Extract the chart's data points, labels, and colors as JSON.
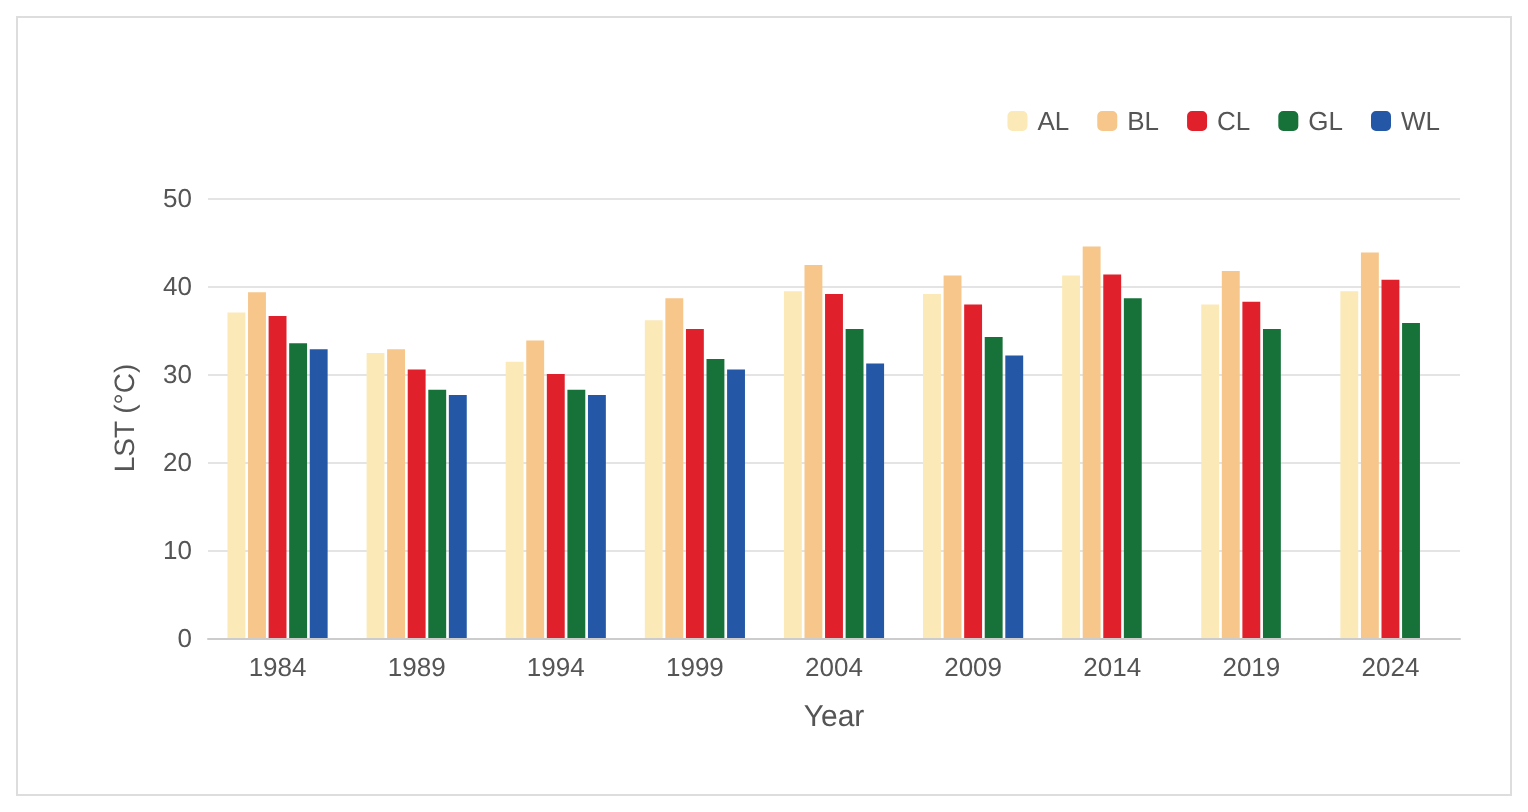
{
  "chart_data": {
    "type": "bar",
    "xlabel": "Year",
    "ylabel": "LST (°C)",
    "categories": [
      "1984",
      "1989",
      "1994",
      "1999",
      "2004",
      "2009",
      "2014",
      "2019",
      "2024"
    ],
    "series": [
      {
        "name": "AL",
        "color": "#fbe9b8",
        "values": [
          37.0,
          32.4,
          31.4,
          36.1,
          39.4,
          39.1,
          41.2,
          37.9,
          39.4
        ]
      },
      {
        "name": "BL",
        "color": "#f6c68a",
        "values": [
          39.3,
          32.8,
          33.8,
          38.6,
          42.4,
          41.2,
          44.5,
          41.7,
          43.8
        ]
      },
      {
        "name": "CL",
        "color": "#e0202a",
        "values": [
          36.6,
          30.5,
          30.0,
          35.1,
          39.1,
          37.9,
          41.3,
          38.2,
          40.7
        ]
      },
      {
        "name": "GL",
        "color": "#17723a",
        "values": [
          33.5,
          28.2,
          28.2,
          31.7,
          35.1,
          34.2,
          38.6,
          35.1,
          35.8
        ]
      },
      {
        "name": "WL",
        "color": "#2457a6",
        "values": [
          32.8,
          27.6,
          27.6,
          30.5,
          31.2,
          32.1,
          null,
          null,
          null
        ]
      }
    ],
    "ylim": [
      0,
      50
    ],
    "yticks": [
      0,
      10,
      20,
      30,
      40,
      50
    ],
    "grid": "y",
    "legend": "top right"
  }
}
